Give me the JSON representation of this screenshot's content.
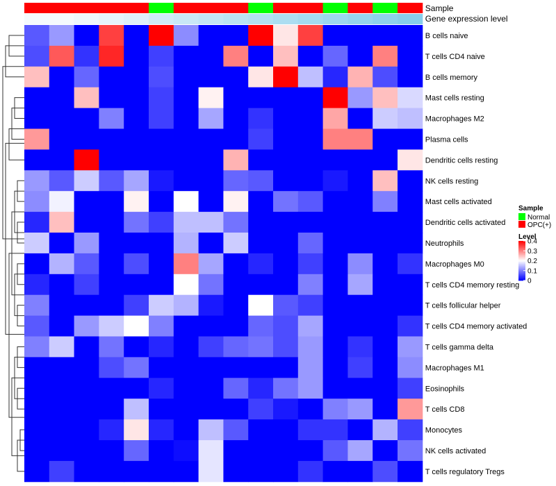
{
  "chart_data": {
    "type": "heatmap",
    "title": "",
    "rows": [
      "B cells naive",
      "T cells CD4 naive",
      "B cells memory",
      "Mast cells resting",
      "Macrophages M2",
      "Plasma cells",
      "Dendritic cells resting",
      "NK cells resting",
      "Mast cells activated",
      "Dendritic cells activated",
      "Neutrophils",
      "Macrophages M0",
      "T cells CD4 memory resting",
      "T cells follicular helper",
      "T cells CD4 memory activated",
      "T cells gamma delta",
      "Macrophages M1",
      "Eosinophils",
      "T cells CD8",
      "Monocytes",
      "NK cells activated",
      "T cells regulatory  Tregs"
    ],
    "sample_groups": [
      "OPC(+)",
      "OPC(+)",
      "OPC(+)",
      "OPC(+)",
      "OPC(+)",
      "Normal",
      "OPC(+)",
      "OPC(+)",
      "OPC(+)",
      "Normal",
      "OPC(+)",
      "OPC(+)",
      "Normal",
      "OPC(+)",
      "Normal",
      "OPC(+)"
    ],
    "expression_levels": [
      0.0,
      0.0,
      0.01,
      0.02,
      0.03,
      0.05,
      0.06,
      0.07,
      0.08,
      0.09,
      0.1,
      0.11,
      0.12,
      0.13,
      0.14,
      0.15
    ],
    "values": [
      [
        0.07,
        0.12,
        0.0,
        0.35,
        0.0,
        0.4,
        0.11,
        0.0,
        0.0,
        0.4,
        0.22,
        0.35,
        0.0,
        0.0,
        0.0,
        0.0
      ],
      [
        0.06,
        0.33,
        0.04,
        0.37,
        0.0,
        0.05,
        0.0,
        0.0,
        0.3,
        0.0,
        0.25,
        0.0,
        0.08,
        0.0,
        0.3,
        0.0
      ],
      [
        0.25,
        0.0,
        0.08,
        0.0,
        0.0,
        0.06,
        0.0,
        0.0,
        0.0,
        0.22,
        0.4,
        0.15,
        0.03,
        0.26,
        0.06,
        0.0
      ],
      [
        0.0,
        0.0,
        0.25,
        0.0,
        0.0,
        0.05,
        0.0,
        0.21,
        0.0,
        0.0,
        0.0,
        0.0,
        0.4,
        0.12,
        0.25,
        0.17
      ],
      [
        0.0,
        0.0,
        0.0,
        0.1,
        0.0,
        0.05,
        0.0,
        0.13,
        0.0,
        0.04,
        0.0,
        0.0,
        0.27,
        0.0,
        0.16,
        0.15
      ],
      [
        0.28,
        0.0,
        0.0,
        0.0,
        0.0,
        0.0,
        0.0,
        0.0,
        0.0,
        0.05,
        0.0,
        0.0,
        0.3,
        0.3,
        0.0,
        0.0
      ],
      [
        0.0,
        0.0,
        0.4,
        0.0,
        0.0,
        0.0,
        0.0,
        0.0,
        0.26,
        0.0,
        0.0,
        0.0,
        0.0,
        0.0,
        0.0,
        0.22
      ],
      [
        0.12,
        0.07,
        0.16,
        0.07,
        0.13,
        0.02,
        0.0,
        0.0,
        0.08,
        0.07,
        0.0,
        0.0,
        0.02,
        0.0,
        0.25,
        0.0
      ],
      [
        0.11,
        0.19,
        0.0,
        0.0,
        0.21,
        0.0,
        0.2,
        0.0,
        0.21,
        0.0,
        0.09,
        0.07,
        0.0,
        0.0,
        0.1,
        0.0
      ],
      [
        0.03,
        0.25,
        0.0,
        0.0,
        0.09,
        0.05,
        0.15,
        0.15,
        0.09,
        0.0,
        0.0,
        0.0,
        0.0,
        0.0,
        0.0,
        0.0
      ],
      [
        0.16,
        0.0,
        0.12,
        0.0,
        0.0,
        0.0,
        0.14,
        0.0,
        0.16,
        0.0,
        0.0,
        0.08,
        0.0,
        0.0,
        0.0,
        0.0
      ],
      [
        0.0,
        0.14,
        0.07,
        0.0,
        0.06,
        0.0,
        0.3,
        0.13,
        0.0,
        0.03,
        0.0,
        0.05,
        0.0,
        0.11,
        0.0,
        0.04
      ],
      [
        0.03,
        0.0,
        0.05,
        0.0,
        0.0,
        0.0,
        0.2,
        0.09,
        0.0,
        0.0,
        0.0,
        0.1,
        0.0,
        0.13,
        0.0,
        0.0
      ],
      [
        0.1,
        0.0,
        0.0,
        0.0,
        0.05,
        0.16,
        0.14,
        0.02,
        0.0,
        0.2,
        0.07,
        0.05,
        0.0,
        0.0,
        0.0,
        0.0
      ],
      [
        0.07,
        0.0,
        0.12,
        0.16,
        0.2,
        0.1,
        0.0,
        0.0,
        0.0,
        0.08,
        0.06,
        0.13,
        0.0,
        0.0,
        0.0,
        0.04
      ],
      [
        0.1,
        0.16,
        0.0,
        0.09,
        0.0,
        0.03,
        0.0,
        0.05,
        0.08,
        0.09,
        0.06,
        0.12,
        0.0,
        0.04,
        0.0,
        0.12
      ],
      [
        0.0,
        0.0,
        0.0,
        0.06,
        0.09,
        0.0,
        0.0,
        0.0,
        0.0,
        0.0,
        0.0,
        0.12,
        0.0,
        0.05,
        0.0,
        0.11
      ],
      [
        0.0,
        0.0,
        0.0,
        0.0,
        0.0,
        0.03,
        0.0,
        0.0,
        0.08,
        0.03,
        0.09,
        0.12,
        0.0,
        0.0,
        0.0,
        0.05
      ],
      [
        0.0,
        0.0,
        0.0,
        0.0,
        0.15,
        0.0,
        0.0,
        0.0,
        0.0,
        0.05,
        0.02,
        0.0,
        0.1,
        0.12,
        0.0,
        0.28
      ],
      [
        0.0,
        0.0,
        0.0,
        0.03,
        0.22,
        0.03,
        0.0,
        0.15,
        0.07,
        0.0,
        0.0,
        0.04,
        0.04,
        0.0,
        0.14,
        0.05
      ],
      [
        0.0,
        0.0,
        0.0,
        0.0,
        0.08,
        0.0,
        0.01,
        0.18,
        0.0,
        0.0,
        0.0,
        0.0,
        0.07,
        0.13,
        0.0,
        0.09
      ],
      [
        0.0,
        0.05,
        0.0,
        0.0,
        0.0,
        0.0,
        0.0,
        0.18,
        0.0,
        0.0,
        0.0,
        0.04,
        0.0,
        0.0,
        0.06,
        0.0
      ]
    ],
    "color_scale": {
      "min": 0,
      "max": 0.4,
      "low": "#0000ff",
      "mid": "#ffffff",
      "high": "#ff0000",
      "mid_value": 0.2
    },
    "annotations": {
      "sample_label": "Sample",
      "expression_label": "Gene expression level",
      "group_colors": {
        "Normal": "#00ff00",
        "OPC(+)": "#ff0000"
      },
      "expression_color_low": "#f5fafd",
      "expression_color_high": "#87ceeb"
    },
    "legend": {
      "sample_title": "Sample",
      "sample_entries": [
        "Normal",
        "OPC(+)"
      ],
      "level_title": "Level",
      "level_ticks": [
        "0.4",
        "0.3",
        "0.2",
        "0.1",
        "0"
      ],
      "level_tick_values": [
        0.4,
        0.3,
        0.2,
        0.1,
        0
      ],
      "placement": "right"
    },
    "dendrogram": "row clustering tree on left"
  }
}
